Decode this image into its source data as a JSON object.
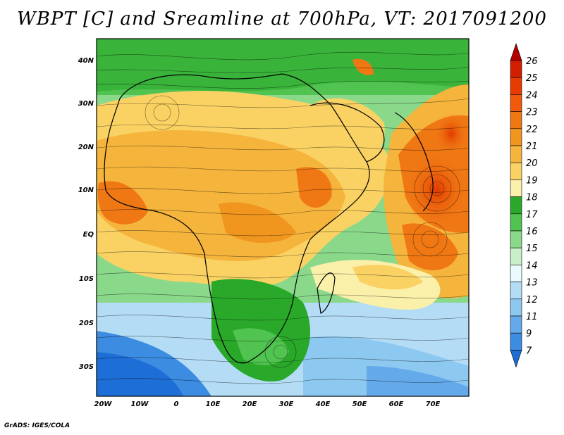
{
  "title": "WBPT [C] and Sreamline at 700hPa, VT: 2017091200",
  "credit": "GrADS: IGES/COLA",
  "map": {
    "lat_labels": [
      "40N",
      "30N",
      "20N",
      "10N",
      "EQ",
      "10S",
      "20S",
      "30S"
    ],
    "lon_labels": [
      "20W",
      "10W",
      "0",
      "10E",
      "20E",
      "30E",
      "40E",
      "50E",
      "60E",
      "70E"
    ],
    "lat_range": [
      -36,
      46
    ],
    "lon_range": [
      -20,
      80
    ],
    "fields": [
      "Wet-bulb potential temperature (shaded)",
      "Streamlines"
    ]
  },
  "colorbar": {
    "levels": [
      "26",
      "25",
      "24",
      "23",
      "22",
      "21",
      "20",
      "19",
      "18",
      "17",
      "16",
      "15",
      "14",
      "13",
      "12",
      "11",
      "9",
      "7"
    ],
    "colors": [
      "#b40000",
      "#d21e00",
      "#e63c00",
      "#f05a0a",
      "#f07814",
      "#f0961e",
      "#f5b43c",
      "#fad264",
      "#faf0aa",
      "#2aa82a",
      "#50c350",
      "#8ad88a",
      "#c8f0c8",
      "#ebfaff",
      "#b4dcf5",
      "#8cc8f0",
      "#64aaeb",
      "#3c8ce1",
      "#1e6ed7"
    ]
  }
}
